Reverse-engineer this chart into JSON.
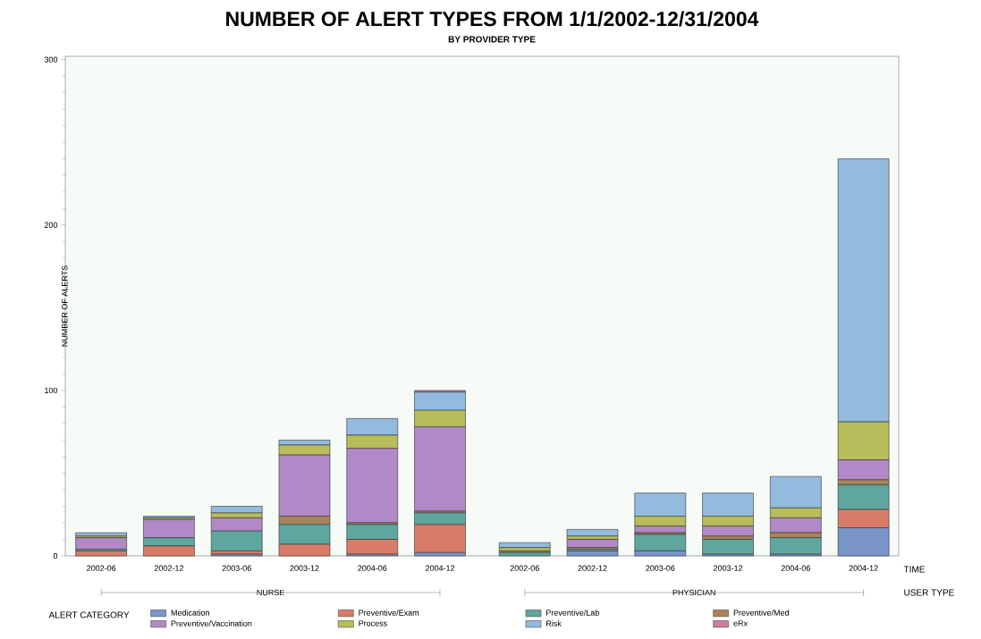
{
  "chart_data": {
    "type": "bar",
    "stacked": true,
    "title": "NUMBER OF ALERT TYPES FROM 1/1/2002-12/31/2004",
    "subtitle": "BY PROVIDER TYPE",
    "xlabel": "TIME",
    "ylabel": "NUMBER OF ALERTS",
    "legend_title": "ALERT CATEGORY",
    "legend": "bottom",
    "grid": false,
    "annotations": [
      "USER TYPE",
      "NURSE",
      "PHYSICIAN"
    ],
    "categories": [
      "2002-06",
      "2002-12",
      "2003-06",
      "2003-12",
      "2004-06",
      "2004-12",
      "2002-06",
      "2002-12",
      "2003-06",
      "2003-12",
      "2004-06",
      "2004-12"
    ],
    "ylim": [
      0,
      302
    ],
    "yticks": [
      0,
      100,
      200,
      300
    ],
    "series": [
      {
        "name": "Medication",
        "color": "#7994c9",
        "values": [
          0,
          0,
          1,
          0,
          1,
          2,
          0,
          3,
          3,
          1,
          1,
          17
        ]
      },
      {
        "name": "Preventive/Exam",
        "color": "#d97b69",
        "values": [
          3,
          6,
          2,
          7,
          9,
          17,
          0,
          0,
          0,
          0,
          0,
          11
        ]
      },
      {
        "name": "Preventive/Lab",
        "color": "#5fa69f",
        "values": [
          1,
          5,
          12,
          12,
          9,
          7,
          2,
          1,
          10,
          9,
          10,
          15
        ]
      },
      {
        "name": "Preventive/Med",
        "color": "#a9835b",
        "values": [
          0,
          0,
          0,
          5,
          1,
          1,
          1,
          1,
          1,
          2,
          3,
          3
        ]
      },
      {
        "name": "Preventive/Vaccination",
        "color": "#b089c6",
        "values": [
          7,
          11,
          8,
          37,
          45,
          51,
          0,
          5,
          4,
          6,
          9,
          12
        ]
      },
      {
        "name": "Process",
        "color": "#b8bc5a",
        "values": [
          1,
          1,
          3,
          6,
          8,
          10,
          2,
          2,
          6,
          6,
          6,
          23
        ]
      },
      {
        "name": "Risk",
        "color": "#92bbdf",
        "values": [
          2,
          1,
          4,
          3,
          10,
          11,
          3,
          4,
          14,
          14,
          19,
          159
        ]
      },
      {
        "name": "eRx",
        "color": "#cf7aa2",
        "values": [
          0,
          0,
          0,
          0,
          0,
          1,
          0,
          0,
          0,
          0,
          0,
          0
        ]
      }
    ]
  }
}
